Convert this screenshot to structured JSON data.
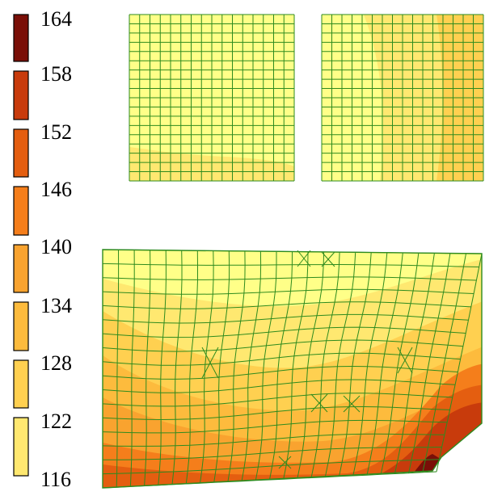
{
  "legend": {
    "tick_labels": [
      "164",
      "158",
      "152",
      "146",
      "140",
      "134",
      "128",
      "122",
      "116"
    ],
    "swatch_colors": [
      "#FFFF88",
      "#FFE870",
      "#FFD050",
      "#FDBB3D",
      "#F9A32F",
      "#F57E1B",
      "#E45E10",
      "#C83B0C",
      "#7A0F08"
    ]
  },
  "panels": {
    "top_left": {
      "fill_colors": [
        "#FFFF88",
        "#FFE870"
      ]
    },
    "top_right": {
      "fill_colors": [
        "#FFFF88",
        "#FFE870",
        "#FFD050"
      ]
    },
    "bottom": {
      "fill_colors": [
        "#FFFF88",
        "#FFE870",
        "#FFD050",
        "#FDBB3D",
        "#F9A32F",
        "#F57E1B",
        "#E45E10",
        "#C83B0C",
        "#7A0F08"
      ]
    }
  },
  "mesh_color": "#2E8B1E"
}
